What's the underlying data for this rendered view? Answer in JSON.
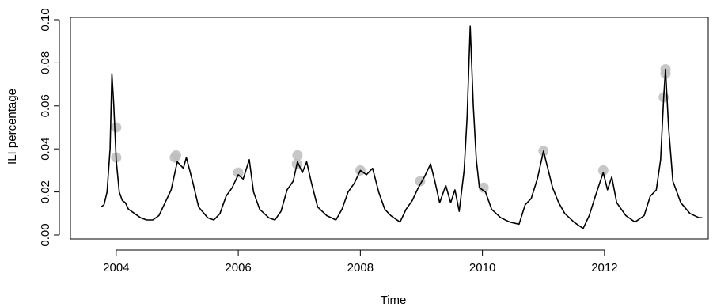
{
  "chart_data": {
    "type": "line",
    "title": "",
    "xlabel": "Time",
    "ylabel": "ILI percentage",
    "xlim": [
      2003.25,
      2013.7
    ],
    "ylim": [
      0,
      0.1
    ],
    "x_ticks": [
      2004,
      2006,
      2008,
      2010,
      2012
    ],
    "x_tick_labels": [
      "2004",
      "2006",
      "2008",
      "2010",
      "2012"
    ],
    "y_ticks": [
      0,
      0.02,
      0.04,
      0.06,
      0.08,
      0.1
    ],
    "y_tick_labels": [
      "0.00",
      "0.02",
      "0.04",
      "0.06",
      "0.08",
      "0.10"
    ],
    "grid": false,
    "series": [
      {
        "color": "#000000",
        "points": [
          [
            2003.75,
            0.013
          ],
          [
            2003.8,
            0.014
          ],
          [
            2003.85,
            0.02
          ],
          [
            2003.9,
            0.04
          ],
          [
            2003.93,
            0.075
          ],
          [
            2003.96,
            0.06
          ],
          [
            2004.0,
            0.035
          ],
          [
            2004.05,
            0.02
          ],
          [
            2004.1,
            0.016
          ],
          [
            2004.15,
            0.015
          ],
          [
            2004.2,
            0.012
          ],
          [
            2004.3,
            0.01
          ],
          [
            2004.4,
            0.008
          ],
          [
            2004.5,
            0.007
          ],
          [
            2004.6,
            0.007
          ],
          [
            2004.7,
            0.009
          ],
          [
            2004.8,
            0.015
          ],
          [
            2004.9,
            0.021
          ],
          [
            2005.0,
            0.034
          ],
          [
            2005.1,
            0.031
          ],
          [
            2005.15,
            0.036
          ],
          [
            2005.25,
            0.025
          ],
          [
            2005.35,
            0.013
          ],
          [
            2005.5,
            0.008
          ],
          [
            2005.6,
            0.007
          ],
          [
            2005.7,
            0.01
          ],
          [
            2005.8,
            0.018
          ],
          [
            2005.9,
            0.022
          ],
          [
            2006.0,
            0.028
          ],
          [
            2006.08,
            0.026
          ],
          [
            2006.18,
            0.035
          ],
          [
            2006.25,
            0.02
          ],
          [
            2006.35,
            0.012
          ],
          [
            2006.5,
            0.008
          ],
          [
            2006.6,
            0.007
          ],
          [
            2006.7,
            0.011
          ],
          [
            2006.8,
            0.021
          ],
          [
            2006.9,
            0.025
          ],
          [
            2006.97,
            0.034
          ],
          [
            2007.05,
            0.029
          ],
          [
            2007.12,
            0.034
          ],
          [
            2007.2,
            0.024
          ],
          [
            2007.3,
            0.013
          ],
          [
            2007.45,
            0.009
          ],
          [
            2007.6,
            0.007
          ],
          [
            2007.7,
            0.012
          ],
          [
            2007.8,
            0.02
          ],
          [
            2007.9,
            0.024
          ],
          [
            2008.0,
            0.03
          ],
          [
            2008.1,
            0.028
          ],
          [
            2008.2,
            0.031
          ],
          [
            2008.3,
            0.02
          ],
          [
            2008.4,
            0.012
          ],
          [
            2008.5,
            0.009
          ],
          [
            2008.65,
            0.006
          ],
          [
            2008.75,
            0.012
          ],
          [
            2008.85,
            0.016
          ],
          [
            2008.95,
            0.022
          ],
          [
            2009.05,
            0.027
          ],
          [
            2009.15,
            0.033
          ],
          [
            2009.22,
            0.025
          ],
          [
            2009.3,
            0.015
          ],
          [
            2009.4,
            0.023
          ],
          [
            2009.48,
            0.015
          ],
          [
            2009.55,
            0.021
          ],
          [
            2009.62,
            0.011
          ],
          [
            2009.7,
            0.03
          ],
          [
            2009.75,
            0.055
          ],
          [
            2009.8,
            0.097
          ],
          [
            2009.85,
            0.06
          ],
          [
            2009.9,
            0.035
          ],
          [
            2009.95,
            0.022
          ],
          [
            2010.05,
            0.02
          ],
          [
            2010.15,
            0.012
          ],
          [
            2010.3,
            0.008
          ],
          [
            2010.45,
            0.006
          ],
          [
            2010.6,
            0.005
          ],
          [
            2010.7,
            0.014
          ],
          [
            2010.8,
            0.017
          ],
          [
            2010.9,
            0.026
          ],
          [
            2011.0,
            0.039
          ],
          [
            2011.08,
            0.03
          ],
          [
            2011.15,
            0.022
          ],
          [
            2011.25,
            0.015
          ],
          [
            2011.35,
            0.01
          ],
          [
            2011.5,
            0.006
          ],
          [
            2011.65,
            0.003
          ],
          [
            2011.75,
            0.009
          ],
          [
            2011.85,
            0.018
          ],
          [
            2011.92,
            0.024
          ],
          [
            2011.98,
            0.029
          ],
          [
            2012.05,
            0.021
          ],
          [
            2012.12,
            0.027
          ],
          [
            2012.2,
            0.015
          ],
          [
            2012.35,
            0.009
          ],
          [
            2012.5,
            0.006
          ],
          [
            2012.65,
            0.009
          ],
          [
            2012.75,
            0.018
          ],
          [
            2012.85,
            0.021
          ],
          [
            2012.92,
            0.035
          ],
          [
            2012.97,
            0.064
          ],
          [
            2013.0,
            0.077
          ],
          [
            2013.05,
            0.05
          ],
          [
            2013.12,
            0.025
          ],
          [
            2013.25,
            0.015
          ],
          [
            2013.4,
            0.01
          ],
          [
            2013.55,
            0.008
          ],
          [
            2013.6,
            0.008
          ]
        ]
      }
    ],
    "highlighted_points": [
      {
        "x": 2004.0,
        "y": 0.05
      },
      {
        "x": 2004.0,
        "y": 0.036
      },
      {
        "x": 2004.98,
        "y": 0.037
      },
      {
        "x": 2004.96,
        "y": 0.036
      },
      {
        "x": 2006.0,
        "y": 0.029
      },
      {
        "x": 2006.97,
        "y": 0.037
      },
      {
        "x": 2006.96,
        "y": 0.033
      },
      {
        "x": 2008.0,
        "y": 0.03
      },
      {
        "x": 2008.98,
        "y": 0.025
      },
      {
        "x": 2010.02,
        "y": 0.022
      },
      {
        "x": 2011.0,
        "y": 0.039
      },
      {
        "x": 2011.98,
        "y": 0.03
      },
      {
        "x": 2013.0,
        "y": 0.077
      },
      {
        "x": 2013.0,
        "y": 0.075
      },
      {
        "x": 2012.97,
        "y": 0.064
      }
    ],
    "highlight_color": "#bdbdbd"
  }
}
